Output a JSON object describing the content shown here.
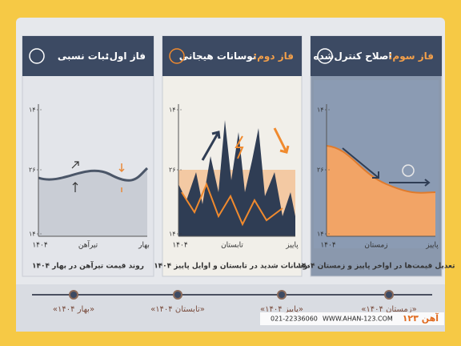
{
  "panels": [
    {
      "title_prefix": "فاز اول:",
      "title_rest": "ثبات نسبی",
      "yticks": [
        "۱۴۰۰",
        "۲۶۰۰",
        "۱۴۰۰"
      ],
      "xlabels": [
        "۱۴۰۴",
        "تیرآهن",
        "بهار"
      ],
      "caption": "روند قیمت تیرآهن در بهار ۱۴۰۴"
    },
    {
      "title_prefix": "فاز دوم:",
      "title_rest": "نوسانات هیجانی",
      "yticks": [
        "۱۴۰۰",
        "۲۶۰۰",
        "۱۴۰۰"
      ],
      "xlabels": [
        "۱۴۰۴",
        "تابستان",
        "پاییز"
      ],
      "caption": "نوسانات شدید در تابستان و اوایل پاییز ۱۴۰۴"
    },
    {
      "title_prefix": "فاز سوم:",
      "title_rest": "اصلاح کنترل‌شده",
      "yticks": [
        "۱۴۰۰",
        "۲۶۰۰",
        "۱۴۰۰"
      ],
      "xlabels": [
        "۱۴۰۴",
        "زمستان",
        "پاییز"
      ],
      "caption": "تعدیل قیمت‌ها در اواخر پاییز و زمستان ۱۴۰۴"
    }
  ],
  "timeline": [
    "«بهار ۱۴۰۴»",
    "«تابستان ۱۴۰۴»",
    "«پاییز ۱۴۰۴»",
    "«زمستان ۱۴۰۴»"
  ],
  "footer": {
    "phone": "021-22336060",
    "website": "WWW.AHAN-123.COM",
    "logo": "آهن ۱۲۳"
  }
}
